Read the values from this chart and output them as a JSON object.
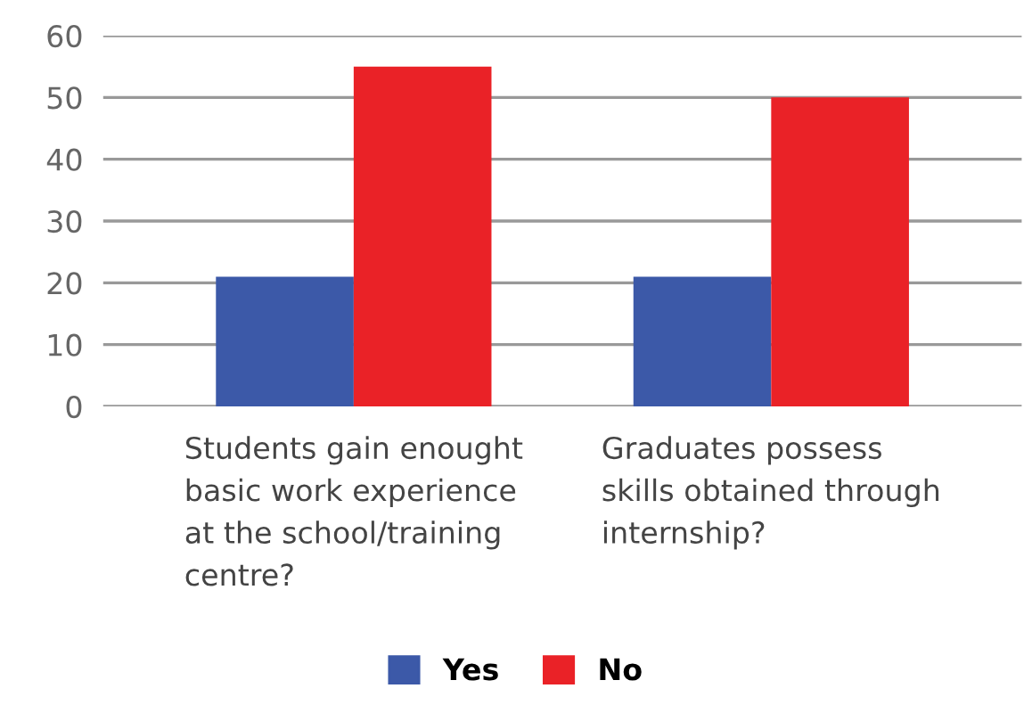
{
  "chart_data": {
    "type": "bar",
    "categories": [
      "Students gain enought\nbasic work experience\nat the school/training\ncentre?",
      "Graduates possess\nskills obtained through\ninternship?"
    ],
    "series": [
      {
        "name": "Yes",
        "color": "#3c59a8",
        "values": [
          21,
          21
        ]
      },
      {
        "name": "No",
        "color": "#ea2227",
        "values": [
          55,
          50
        ]
      }
    ],
    "ylim": [
      0,
      60
    ],
    "yticks": [
      0,
      10,
      20,
      30,
      40,
      50,
      60
    ],
    "grid": "y",
    "legend": "bottom"
  }
}
